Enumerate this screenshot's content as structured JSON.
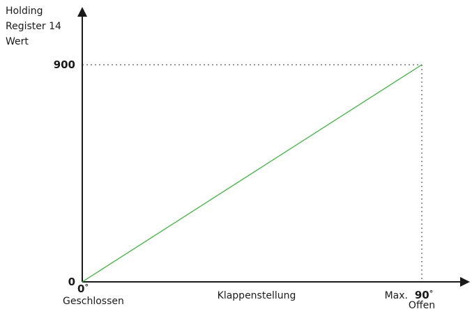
{
  "chart_data": {
    "type": "line",
    "title": "",
    "ylabel": [
      "Holding",
      "Register 14",
      "Wert"
    ],
    "xlabel": "Klappenstellung",
    "x_unit": "°",
    "x": [
      0,
      90
    ],
    "series": [
      {
        "values": [
          0,
          900
        ],
        "color": "#3cb43c"
      }
    ],
    "xlim": [
      0,
      90
    ],
    "ylim": [
      0,
      900
    ],
    "x_ticks": [
      {
        "value": 0,
        "label": "0",
        "sublabel": "Geschlossen"
      },
      {
        "value": 90,
        "label": "90",
        "prefix": "Max.",
        "sublabel": "Offen"
      }
    ],
    "y_ticks": [
      {
        "value": 0,
        "label": "0"
      },
      {
        "value": 900,
        "label": "900"
      }
    ],
    "reference_lines": "dotted to point (90, 900)",
    "grid": false,
    "legend": "none"
  }
}
